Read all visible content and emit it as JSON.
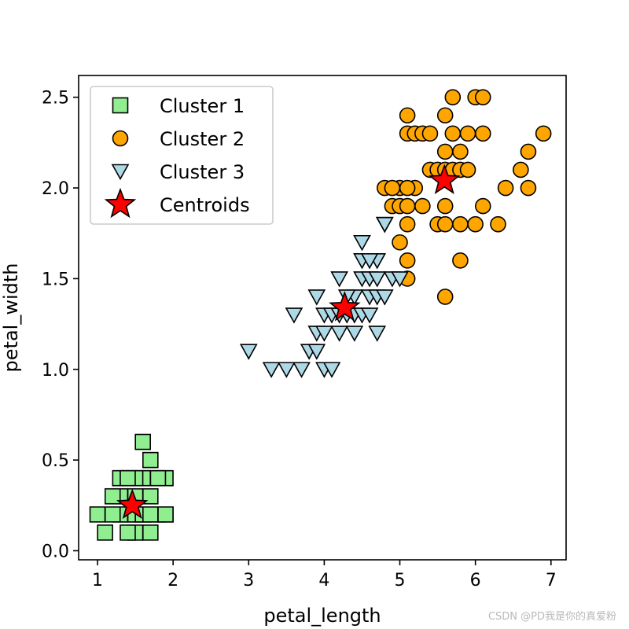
{
  "chart_data": {
    "type": "scatter",
    "xlabel": "petal_length",
    "ylabel": "petal_width",
    "xlim": [
      0.75,
      7.2
    ],
    "ylim": [
      -0.05,
      2.62
    ],
    "xticks": [
      1,
      2,
      3,
      4,
      5,
      6,
      7
    ],
    "xtick_labels": [
      "1",
      "2",
      "3",
      "4",
      "5",
      "6",
      "7"
    ],
    "yticks": [
      0.0,
      0.5,
      1.0,
      1.5,
      2.0,
      2.5
    ],
    "ytick_labels": [
      "0.0",
      "0.5",
      "1.0",
      "1.5",
      "2.0",
      "2.5"
    ],
    "grid": false,
    "legend_position": "top-left",
    "series": [
      {
        "name": "Cluster 1",
        "marker": "square",
        "color": "#90ee90",
        "points": [
          [
            1.4,
            0.2
          ],
          [
            1.3,
            0.2
          ],
          [
            1.5,
            0.2
          ],
          [
            1.7,
            0.4
          ],
          [
            1.4,
            0.3
          ],
          [
            1.5,
            0.1
          ],
          [
            1.6,
            0.2
          ],
          [
            1.1,
            0.1
          ],
          [
            1.2,
            0.2
          ],
          [
            1.3,
            0.4
          ],
          [
            1.0,
            0.2
          ],
          [
            1.7,
            0.5
          ],
          [
            1.9,
            0.2
          ],
          [
            1.6,
            0.4
          ],
          [
            1.5,
            0.4
          ],
          [
            1.4,
            0.4
          ],
          [
            1.6,
            0.6
          ],
          [
            1.3,
            0.3
          ],
          [
            1.9,
            0.4
          ],
          [
            1.6,
            0.2
          ],
          [
            1.7,
            0.3
          ],
          [
            1.8,
            0.2
          ],
          [
            1.7,
            0.2
          ],
          [
            1.2,
            0.3
          ],
          [
            1.5,
            0.3
          ],
          [
            1.4,
            0.1
          ],
          [
            1.7,
            0.1
          ],
          [
            1.9,
            0.2
          ],
          [
            1.8,
            0.4
          ]
        ]
      },
      {
        "name": "Cluster 2",
        "marker": "circle",
        "color": "#ffa500",
        "points": [
          [
            4.8,
            2.0
          ],
          [
            5.0,
            2.0
          ],
          [
            5.1,
            2.4
          ],
          [
            5.6,
            2.4
          ],
          [
            5.7,
            2.5
          ],
          [
            6.0,
            2.5
          ],
          [
            6.1,
            2.5
          ],
          [
            5.1,
            2.3
          ],
          [
            5.2,
            2.3
          ],
          [
            5.3,
            2.3
          ],
          [
            5.4,
            2.3
          ],
          [
            5.7,
            2.3
          ],
          [
            5.9,
            2.3
          ],
          [
            6.1,
            2.3
          ],
          [
            6.9,
            2.3
          ],
          [
            5.6,
            2.2
          ],
          [
            5.8,
            2.2
          ],
          [
            5.4,
            2.1
          ],
          [
            5.5,
            2.1
          ],
          [
            5.6,
            2.1
          ],
          [
            5.7,
            2.1
          ],
          [
            5.8,
            2.1
          ],
          [
            5.9,
            2.1
          ],
          [
            6.6,
            2.1
          ],
          [
            6.7,
            2.2
          ],
          [
            6.4,
            2.0
          ],
          [
            6.7,
            2.0
          ],
          [
            4.9,
            1.9
          ],
          [
            5.0,
            1.9
          ],
          [
            5.1,
            1.9
          ],
          [
            5.3,
            1.9
          ],
          [
            5.6,
            1.9
          ],
          [
            6.1,
            1.9
          ],
          [
            5.1,
            1.8
          ],
          [
            5.5,
            1.8
          ],
          [
            5.6,
            1.8
          ],
          [
            5.8,
            1.8
          ],
          [
            6.0,
            1.8
          ],
          [
            6.3,
            1.8
          ],
          [
            5.0,
            1.7
          ],
          [
            5.1,
            1.6
          ],
          [
            5.8,
            1.6
          ],
          [
            5.1,
            1.5
          ],
          [
            5.6,
            1.4
          ],
          [
            4.9,
            2.0
          ],
          [
            5.2,
            2.0
          ],
          [
            5.1,
            2.0
          ]
        ]
      },
      {
        "name": "Cluster 3",
        "marker": "triangle_down",
        "color": "#add8e6",
        "points": [
          [
            3.0,
            1.1
          ],
          [
            3.3,
            1.0
          ],
          [
            3.5,
            1.0
          ],
          [
            3.6,
            1.3
          ],
          [
            3.7,
            1.0
          ],
          [
            3.8,
            1.1
          ],
          [
            3.9,
            1.1
          ],
          [
            3.9,
            1.2
          ],
          [
            3.9,
            1.4
          ],
          [
            4.0,
            1.0
          ],
          [
            4.0,
            1.2
          ],
          [
            4.0,
            1.3
          ],
          [
            4.1,
            1.0
          ],
          [
            4.1,
            1.3
          ],
          [
            4.2,
            1.2
          ],
          [
            4.2,
            1.3
          ],
          [
            4.2,
            1.5
          ],
          [
            4.3,
            1.3
          ],
          [
            4.4,
            1.2
          ],
          [
            4.4,
            1.3
          ],
          [
            4.4,
            1.4
          ],
          [
            4.5,
            1.3
          ],
          [
            4.5,
            1.5
          ],
          [
            4.5,
            1.6
          ],
          [
            4.5,
            1.7
          ],
          [
            4.6,
            1.3
          ],
          [
            4.6,
            1.4
          ],
          [
            4.6,
            1.5
          ],
          [
            4.7,
            1.2
          ],
          [
            4.7,
            1.4
          ],
          [
            4.7,
            1.5
          ],
          [
            4.7,
            1.6
          ],
          [
            4.8,
            1.4
          ],
          [
            4.8,
            1.8
          ],
          [
            4.9,
            1.5
          ],
          [
            5.0,
            1.5
          ],
          [
            4.8,
            1.8
          ],
          [
            4.6,
            1.6
          ],
          [
            4.3,
            1.4
          ]
        ]
      }
    ],
    "centroids": {
      "name": "Centroids",
      "marker": "star",
      "color": "#ff0000",
      "points": [
        [
          1.46,
          0.25
        ],
        [
          4.27,
          1.34
        ],
        [
          5.59,
          2.04
        ]
      ]
    }
  },
  "watermark": "CSDN @PD我是你的真爱粉"
}
